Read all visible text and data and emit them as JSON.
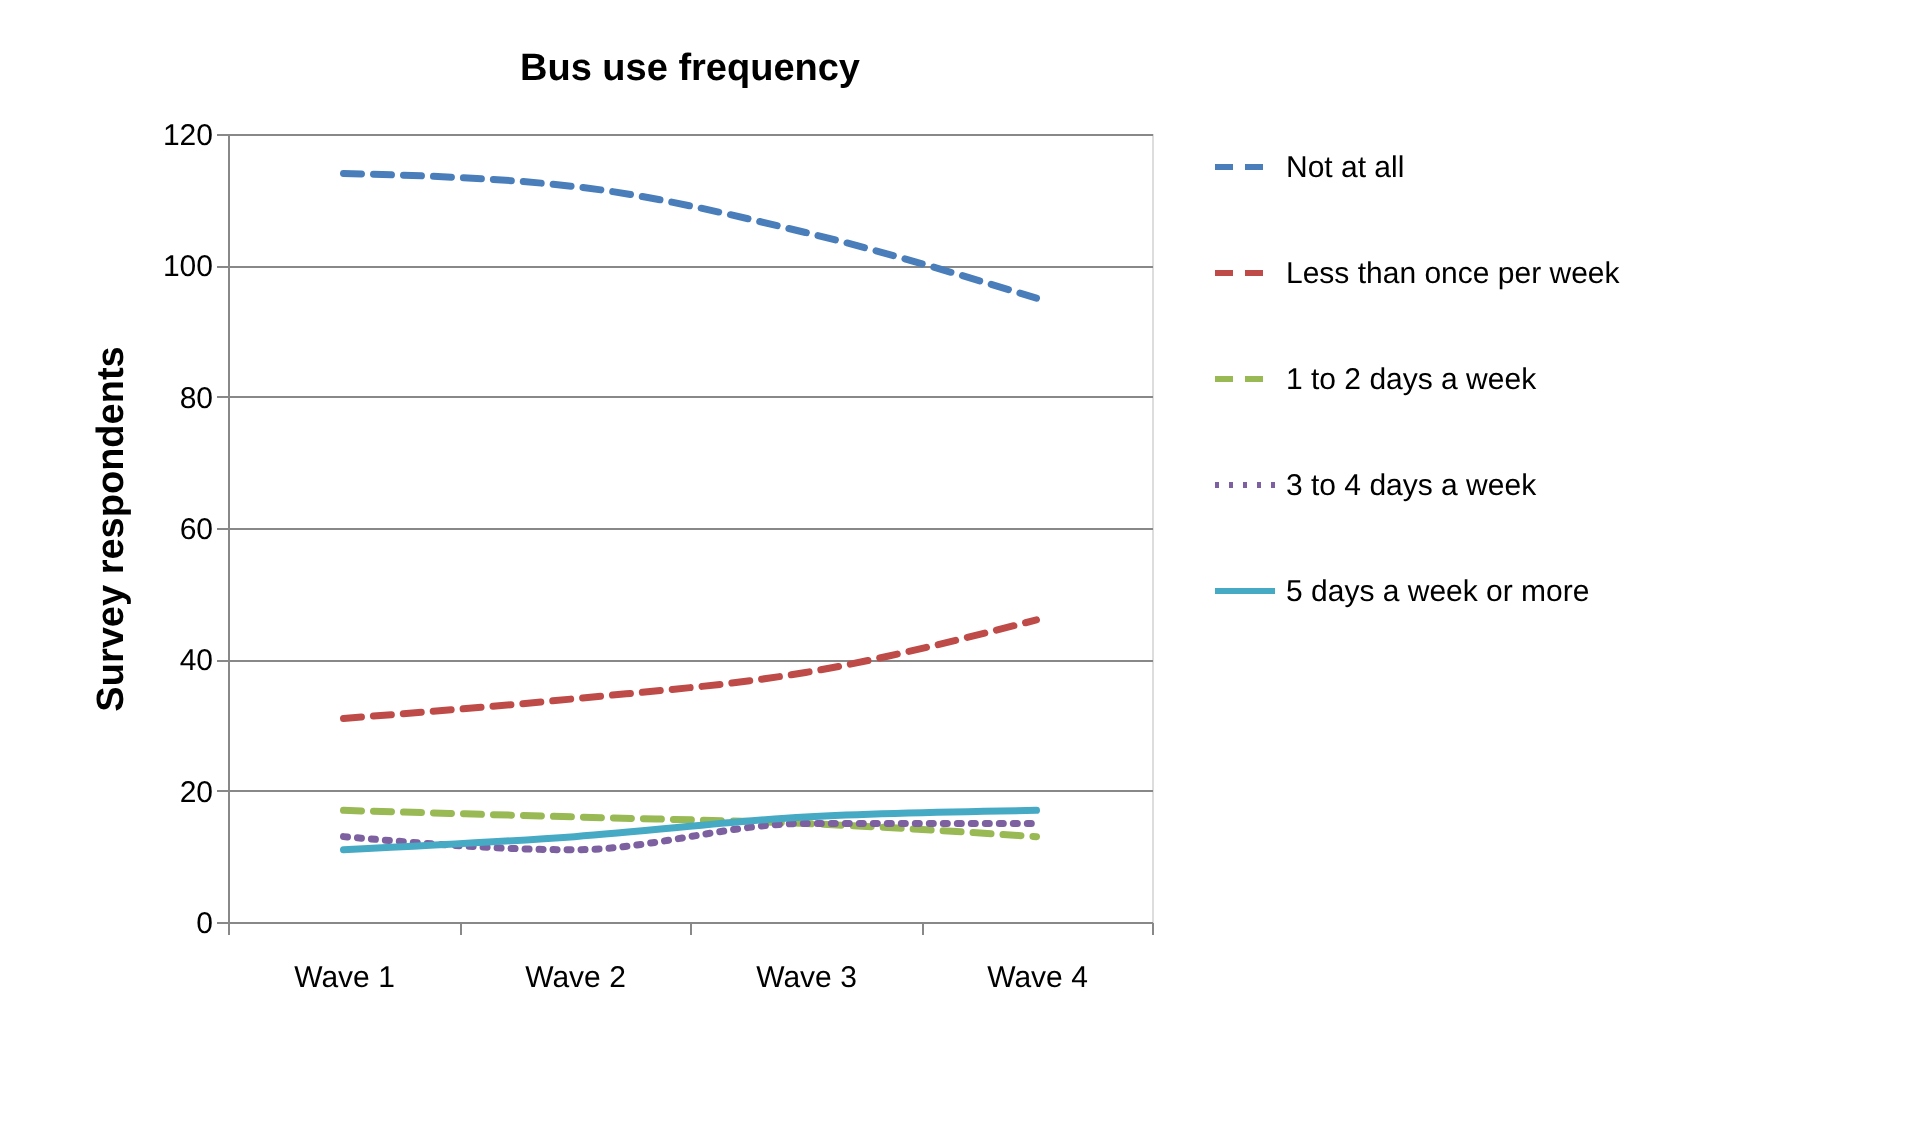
{
  "chart_data": {
    "type": "line",
    "title": "Bus use frequency",
    "ylabel": "Survey respondents",
    "categories": [
      "Wave 1",
      "Wave 2",
      "Wave 3",
      "Wave 4"
    ],
    "series": [
      {
        "name": "Not at all",
        "color": "#4a7ebb",
        "line_style": "dashed",
        "values": [
          114,
          112,
          105,
          95
        ]
      },
      {
        "name": "Less than once per week",
        "color": "#be4b48",
        "line_style": "dashed",
        "values": [
          31,
          34,
          38,
          46
        ]
      },
      {
        "name": "1 to 2 days a week",
        "color": "#98b954",
        "line_style": "dashed",
        "values": [
          17,
          16,
          15,
          13
        ]
      },
      {
        "name": "3 to 4 days a week",
        "color": "#7d60a0",
        "line_style": "dotted",
        "values": [
          13,
          11,
          15,
          15
        ]
      },
      {
        "name": "5 days a week or more",
        "color": "#46aac5",
        "line_style": "solid",
        "values": [
          11,
          13,
          16,
          17
        ]
      }
    ],
    "ylim": [
      0,
      120
    ],
    "yticks": [
      0,
      20,
      40,
      60,
      80,
      100,
      120
    ],
    "grid": "y",
    "legend": "right",
    "marker": "none"
  }
}
